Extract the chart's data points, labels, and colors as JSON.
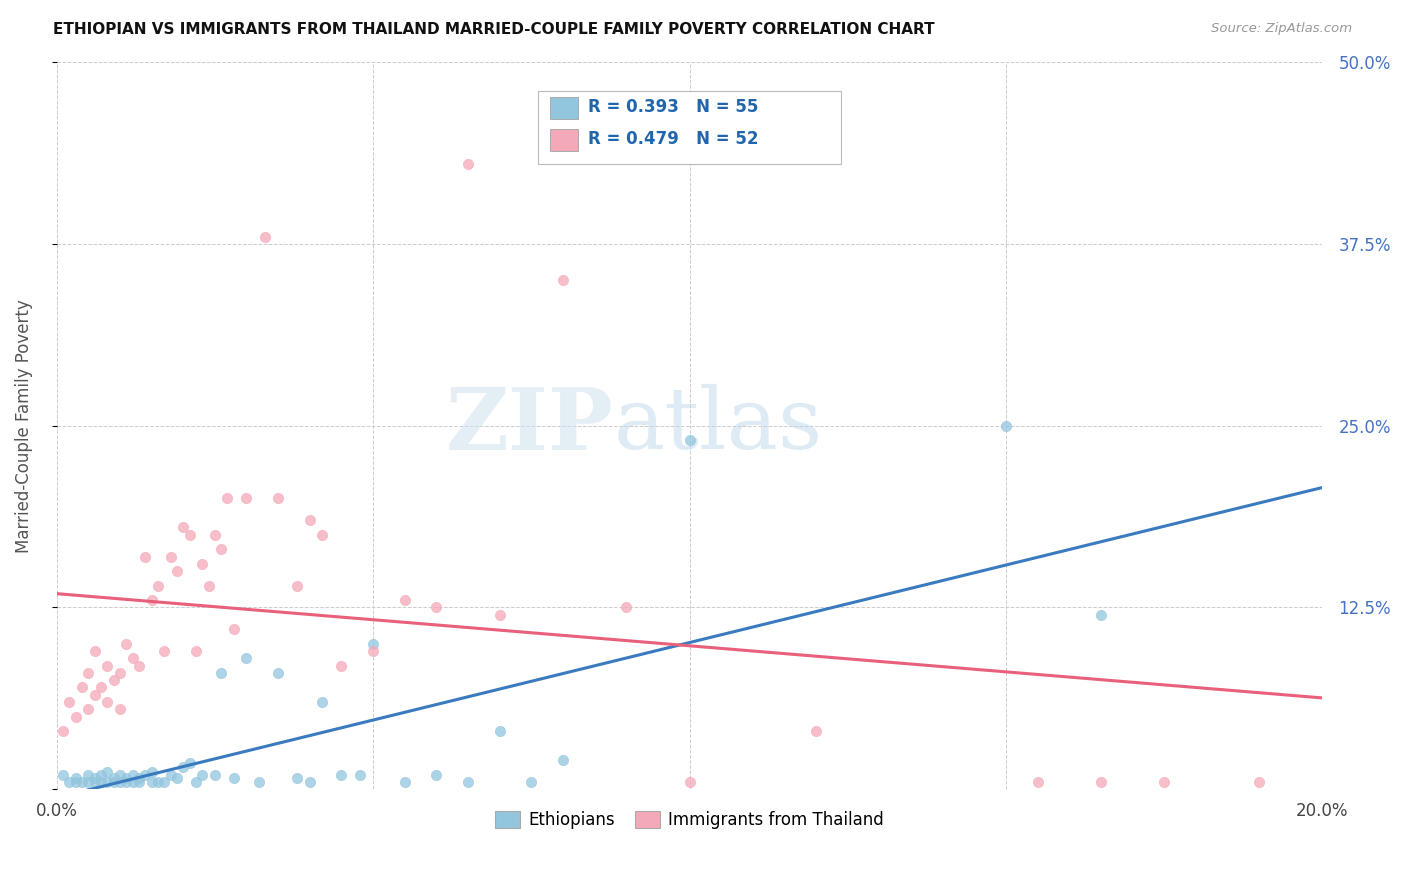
{
  "title": "ETHIOPIAN VS IMMIGRANTS FROM THAILAND MARRIED-COUPLE FAMILY POVERTY CORRELATION CHART",
  "source": "Source: ZipAtlas.com",
  "ylabel": "Married-Couple Family Poverty",
  "xlim": [
    0.0,
    0.2
  ],
  "ylim": [
    0.0,
    0.5
  ],
  "xticks": [
    0.0,
    0.05,
    0.1,
    0.15,
    0.2
  ],
  "yticks": [
    0.0,
    0.125,
    0.25,
    0.375,
    0.5
  ],
  "legend_r_blue": "R = 0.393",
  "legend_n_blue": "N = 55",
  "legend_r_pink": "R = 0.479",
  "legend_n_pink": "N = 52",
  "legend_label_blue": "Ethiopians",
  "legend_label_pink": "Immigrants from Thailand",
  "blue_color": "#92c5de",
  "pink_color": "#f4a9b8",
  "trendline_blue_color": "#3a7bbf",
  "trendline_pink_color": "#e8607a",
  "watermark_zip": "ZIP",
  "watermark_atlas": "atlas",
  "blue_x": [
    0.001,
    0.002,
    0.003,
    0.003,
    0.004,
    0.005,
    0.005,
    0.006,
    0.006,
    0.007,
    0.007,
    0.008,
    0.008,
    0.009,
    0.009,
    0.01,
    0.01,
    0.011,
    0.011,
    0.012,
    0.012,
    0.013,
    0.013,
    0.014,
    0.015,
    0.015,
    0.016,
    0.017,
    0.018,
    0.019,
    0.02,
    0.021,
    0.022,
    0.023,
    0.025,
    0.026,
    0.028,
    0.03,
    0.032,
    0.035,
    0.038,
    0.04,
    0.042,
    0.045,
    0.048,
    0.05,
    0.055,
    0.06,
    0.065,
    0.07,
    0.075,
    0.08,
    0.1,
    0.15,
    0.165
  ],
  "blue_y": [
    0.01,
    0.005,
    0.005,
    0.008,
    0.005,
    0.005,
    0.01,
    0.005,
    0.008,
    0.005,
    0.01,
    0.005,
    0.012,
    0.005,
    0.008,
    0.005,
    0.01,
    0.008,
    0.005,
    0.005,
    0.01,
    0.005,
    0.008,
    0.01,
    0.005,
    0.012,
    0.005,
    0.005,
    0.01,
    0.008,
    0.015,
    0.018,
    0.005,
    0.01,
    0.01,
    0.08,
    0.008,
    0.09,
    0.005,
    0.08,
    0.008,
    0.005,
    0.06,
    0.01,
    0.01,
    0.1,
    0.005,
    0.01,
    0.005,
    0.04,
    0.005,
    0.02,
    0.24,
    0.25,
    0.12
  ],
  "pink_x": [
    0.001,
    0.002,
    0.003,
    0.004,
    0.005,
    0.005,
    0.006,
    0.006,
    0.007,
    0.008,
    0.008,
    0.009,
    0.01,
    0.01,
    0.011,
    0.012,
    0.013,
    0.014,
    0.015,
    0.016,
    0.017,
    0.018,
    0.019,
    0.02,
    0.021,
    0.022,
    0.023,
    0.024,
    0.025,
    0.026,
    0.027,
    0.028,
    0.03,
    0.033,
    0.035,
    0.038,
    0.04,
    0.042,
    0.045,
    0.05,
    0.055,
    0.06,
    0.065,
    0.07,
    0.08,
    0.09,
    0.1,
    0.12,
    0.155,
    0.165,
    0.175,
    0.19
  ],
  "pink_y": [
    0.04,
    0.06,
    0.05,
    0.07,
    0.055,
    0.08,
    0.065,
    0.095,
    0.07,
    0.06,
    0.085,
    0.075,
    0.08,
    0.055,
    0.1,
    0.09,
    0.085,
    0.16,
    0.13,
    0.14,
    0.095,
    0.16,
    0.15,
    0.18,
    0.175,
    0.095,
    0.155,
    0.14,
    0.175,
    0.165,
    0.2,
    0.11,
    0.2,
    0.38,
    0.2,
    0.14,
    0.185,
    0.175,
    0.085,
    0.095,
    0.13,
    0.125,
    0.43,
    0.12,
    0.35,
    0.125,
    0.005,
    0.04,
    0.005,
    0.005,
    0.005,
    0.005
  ]
}
